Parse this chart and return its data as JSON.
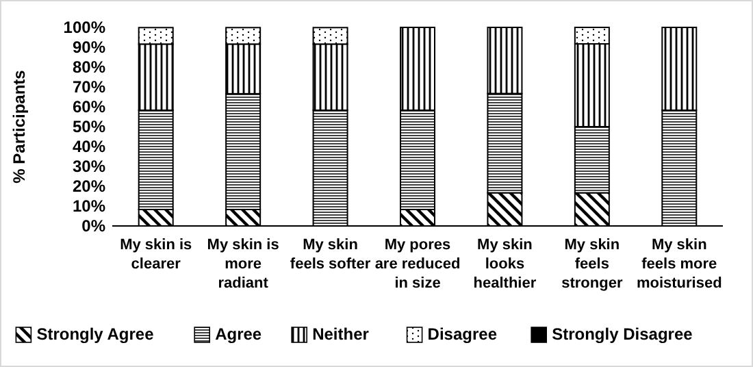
{
  "chart_data": {
    "type": "bar",
    "stacked": true,
    "ylabel": "% Participants",
    "categories": [
      "My skin is\nclearer",
      "My skin is\nmore\nradiant",
      "My skin\nfeels softer",
      "My pores\nare reduced\nin size",
      "My skin\nlooks\nhealthier",
      "My skin\nfeels\nstronger",
      "My skin\nfeels more\nmoisturised"
    ],
    "series": [
      {
        "name": "Strongly Agree",
        "color": "#000000",
        "values": [
          8.3,
          8.3,
          0,
          8.3,
          16.7,
          16.7,
          0
        ]
      },
      {
        "name": "Agree",
        "color": "#000000",
        "values": [
          50,
          58.3,
          58.3,
          50,
          50,
          33.3,
          58.3
        ]
      },
      {
        "name": "Neither",
        "color": "#000000",
        "values": [
          33.3,
          25,
          33.3,
          41.7,
          33.3,
          41.7,
          41.7
        ]
      },
      {
        "name": "Disagree",
        "color": "#000000",
        "values": [
          8.3,
          8.3,
          8.3,
          0,
          0,
          8.3,
          0
        ]
      },
      {
        "name": "Strongly Disagree",
        "color": "#000000",
        "values": [
          0,
          0,
          0,
          0,
          0,
          0,
          0
        ]
      }
    ],
    "ylim": [
      0,
      100
    ],
    "yticks": [
      {
        "value": 0,
        "label": "0%"
      },
      {
        "value": 10,
        "label": "10%"
      },
      {
        "value": 20,
        "label": "20%"
      },
      {
        "value": 30,
        "label": "30%"
      },
      {
        "value": 40,
        "label": "40%"
      },
      {
        "value": 50,
        "label": "50%"
      },
      {
        "value": 60,
        "label": "60%"
      },
      {
        "value": 70,
        "label": "70%"
      },
      {
        "value": 80,
        "label": "80%"
      },
      {
        "value": 90,
        "label": "90%"
      },
      {
        "value": 100,
        "label": "100%"
      }
    ],
    "grid": false,
    "legend": "bottom"
  }
}
